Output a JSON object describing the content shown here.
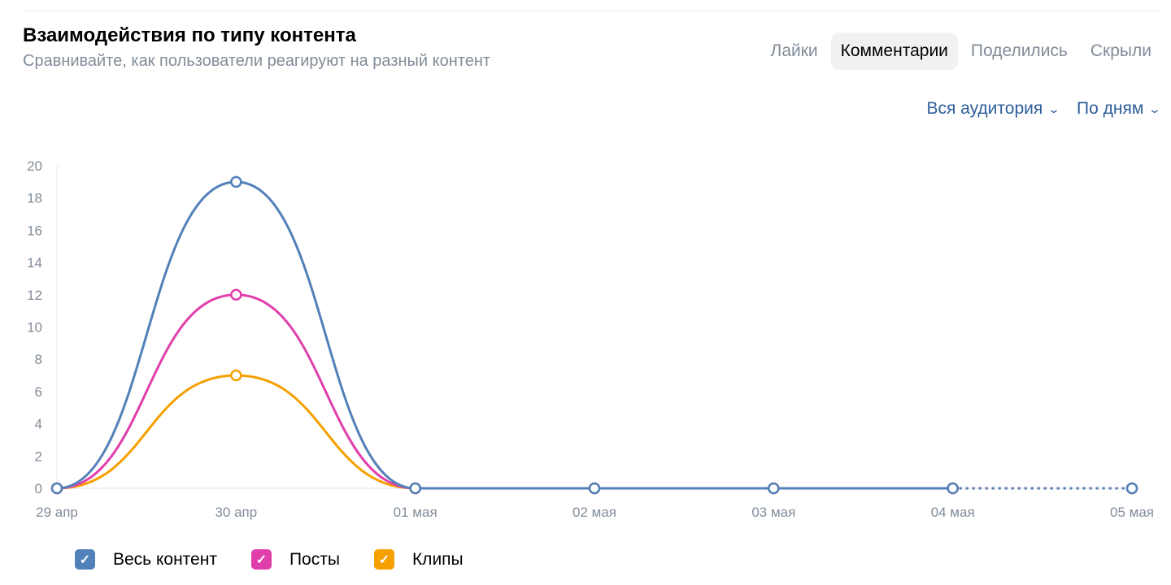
{
  "header": {
    "title": "Взаимодействия по типу контента",
    "subtitle": "Сравнивайте, как пользователи реагируют на разный контент"
  },
  "tabs": [
    {
      "label": "Лайки",
      "active": false
    },
    {
      "label": "Комментарии",
      "active": true
    },
    {
      "label": "Поделились",
      "active": false
    },
    {
      "label": "Скрыли",
      "active": false
    }
  ],
  "filters": {
    "audience": "Вся аудитория",
    "period": "По дням",
    "chevron_icon": "chevron-down-icon"
  },
  "chart_data": {
    "type": "line",
    "categories": [
      "29 апр",
      "30 апр",
      "01 мая",
      "02 мая",
      "03 мая",
      "04 мая",
      "05 мая"
    ],
    "ylim": [
      0,
      20
    ],
    "yticks": [
      0,
      2,
      4,
      6,
      8,
      10,
      12,
      14,
      16,
      18,
      20
    ],
    "grid": false,
    "legend_position": "bottom-left",
    "dotted_last_segment": true,
    "series": [
      {
        "name": "Весь контент",
        "color": "#5181b8",
        "values": [
          0,
          19,
          0,
          0,
          0,
          0,
          0
        ]
      },
      {
        "name": "Посты",
        "color": "#e03fab",
        "values": [
          0,
          12,
          0,
          0,
          0,
          0,
          0
        ]
      },
      {
        "name": "Клипы",
        "color": "#f5a000",
        "values": [
          0,
          7,
          0,
          0,
          0,
          0,
          0
        ]
      }
    ]
  }
}
